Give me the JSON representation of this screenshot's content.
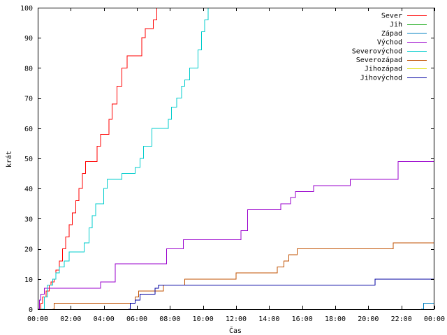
{
  "chart_data": {
    "type": "line",
    "title": "",
    "xlabel": "Čas",
    "ylabel": "krát",
    "xlim": [
      0,
      24
    ],
    "ylim": [
      0,
      100
    ],
    "x_unit": "hours",
    "grid": false,
    "legend_position": "top-right",
    "x_ticks": [
      {
        "value": 0,
        "label": "00:00"
      },
      {
        "value": 2,
        "label": "02:00"
      },
      {
        "value": 4,
        "label": "04:00"
      },
      {
        "value": 6,
        "label": "06:00"
      },
      {
        "value": 8,
        "label": "08:00"
      },
      {
        "value": 10,
        "label": "10:00"
      },
      {
        "value": 12,
        "label": "12:00"
      },
      {
        "value": 14,
        "label": "14:00"
      },
      {
        "value": 16,
        "label": "16:00"
      },
      {
        "value": 18,
        "label": "18:00"
      },
      {
        "value": 20,
        "label": "20:00"
      },
      {
        "value": 22,
        "label": "22:00"
      },
      {
        "value": 24,
        "label": "00:00"
      }
    ],
    "y_ticks": [
      {
        "value": 0,
        "label": "0"
      },
      {
        "value": 10,
        "label": "10"
      },
      {
        "value": 20,
        "label": "20"
      },
      {
        "value": 30,
        "label": "30"
      },
      {
        "value": 40,
        "label": "40"
      },
      {
        "value": 50,
        "label": "50"
      },
      {
        "value": 60,
        "label": "60"
      },
      {
        "value": 70,
        "label": "70"
      },
      {
        "value": 80,
        "label": "80"
      },
      {
        "value": 90,
        "label": "90"
      },
      {
        "value": 100,
        "label": "100"
      }
    ],
    "series": [
      {
        "name": "Sever",
        "color": "#ff0000",
        "points": [
          [
            0.1,
            0
          ],
          [
            0.2,
            2
          ],
          [
            0.3,
            4
          ],
          [
            0.5,
            6
          ],
          [
            0.7,
            8
          ],
          [
            0.8,
            9
          ],
          [
            1.0,
            10
          ],
          [
            1.1,
            13
          ],
          [
            1.3,
            16
          ],
          [
            1.5,
            20
          ],
          [
            1.7,
            24
          ],
          [
            1.9,
            28
          ],
          [
            2.1,
            32
          ],
          [
            2.3,
            36
          ],
          [
            2.5,
            40
          ],
          [
            2.7,
            45
          ],
          [
            2.9,
            49
          ],
          [
            3.4,
            49
          ],
          [
            3.6,
            54
          ],
          [
            3.8,
            58
          ],
          [
            4.1,
            58
          ],
          [
            4.3,
            63
          ],
          [
            4.5,
            68
          ],
          [
            4.8,
            74
          ],
          [
            5.1,
            80
          ],
          [
            5.4,
            84
          ],
          [
            6.0,
            84
          ],
          [
            6.3,
            90
          ],
          [
            6.5,
            93
          ],
          [
            6.8,
            93
          ],
          [
            7.0,
            96
          ],
          [
            7.2,
            100
          ]
        ]
      },
      {
        "name": "Jih",
        "color": "#00a000",
        "points": []
      },
      {
        "name": "Západ",
        "color": "#0080c0",
        "points": [
          [
            23.2,
            0
          ],
          [
            23.35,
            2
          ],
          [
            24,
            2
          ]
        ]
      },
      {
        "name": "Východ",
        "color": "#9900cc",
        "points": [
          [
            0,
            0
          ],
          [
            0.1,
            3
          ],
          [
            0.2,
            5
          ],
          [
            0.4,
            7
          ],
          [
            3.6,
            7
          ],
          [
            3.8,
            9
          ],
          [
            4.5,
            9
          ],
          [
            4.7,
            15
          ],
          [
            7.5,
            15
          ],
          [
            7.8,
            20
          ],
          [
            8.6,
            20
          ],
          [
            8.8,
            23
          ],
          [
            12.1,
            23
          ],
          [
            12.3,
            26
          ],
          [
            12.7,
            33
          ],
          [
            14.5,
            33
          ],
          [
            14.7,
            35
          ],
          [
            15.3,
            37
          ],
          [
            15.6,
            39
          ],
          [
            16.5,
            39
          ],
          [
            16.7,
            41
          ],
          [
            18.7,
            41
          ],
          [
            18.9,
            43
          ],
          [
            21.6,
            43
          ],
          [
            21.8,
            49
          ],
          [
            24,
            49
          ]
        ]
      },
      {
        "name": "Severovýchod",
        "color": "#00cccc",
        "points": [
          [
            0.15,
            0
          ],
          [
            0.4,
            4
          ],
          [
            0.6,
            8
          ],
          [
            0.9,
            10
          ],
          [
            1.1,
            12
          ],
          [
            1.3,
            14
          ],
          [
            1.6,
            16
          ],
          [
            1.9,
            19
          ],
          [
            2.6,
            19
          ],
          [
            2.8,
            22
          ],
          [
            3.1,
            27
          ],
          [
            3.3,
            31
          ],
          [
            3.5,
            35
          ],
          [
            3.8,
            35
          ],
          [
            4.0,
            40
          ],
          [
            4.2,
            43
          ],
          [
            4.9,
            43
          ],
          [
            5.1,
            45
          ],
          [
            5.7,
            45
          ],
          [
            5.9,
            47
          ],
          [
            6.2,
            50
          ],
          [
            6.4,
            54
          ],
          [
            6.7,
            54
          ],
          [
            6.9,
            60
          ],
          [
            7.7,
            60
          ],
          [
            7.9,
            63
          ],
          [
            8.1,
            67
          ],
          [
            8.4,
            70
          ],
          [
            8.7,
            74
          ],
          [
            8.9,
            76
          ],
          [
            9.2,
            80
          ],
          [
            9.5,
            80
          ],
          [
            9.7,
            86
          ],
          [
            9.9,
            92
          ],
          [
            10.1,
            96
          ],
          [
            10.3,
            100
          ]
        ]
      },
      {
        "name": "Severozápad",
        "color": "#c05000",
        "points": [
          [
            0.9,
            0
          ],
          [
            1.0,
            2
          ],
          [
            5.7,
            2
          ],
          [
            5.9,
            4
          ],
          [
            6.1,
            6
          ],
          [
            7.4,
            6
          ],
          [
            7.6,
            8
          ],
          [
            8.7,
            8
          ],
          [
            8.9,
            10
          ],
          [
            11.8,
            10
          ],
          [
            12.0,
            12
          ],
          [
            14.3,
            12
          ],
          [
            14.5,
            14
          ],
          [
            14.9,
            16
          ],
          [
            15.2,
            18
          ],
          [
            15.7,
            20
          ],
          [
            21.3,
            20
          ],
          [
            21.5,
            22
          ],
          [
            24,
            22
          ]
        ]
      },
      {
        "name": "Jihozápad",
        "color": "#e0e000",
        "points": []
      },
      {
        "name": "Jihovýchod",
        "color": "#0000a0",
        "points": [
          [
            5.5,
            0
          ],
          [
            5.6,
            2
          ],
          [
            5.9,
            3
          ],
          [
            6.2,
            5
          ],
          [
            6.9,
            5
          ],
          [
            7.1,
            7
          ],
          [
            7.3,
            8
          ],
          [
            20.3,
            8
          ],
          [
            20.4,
            10
          ],
          [
            24,
            10
          ]
        ]
      }
    ]
  }
}
